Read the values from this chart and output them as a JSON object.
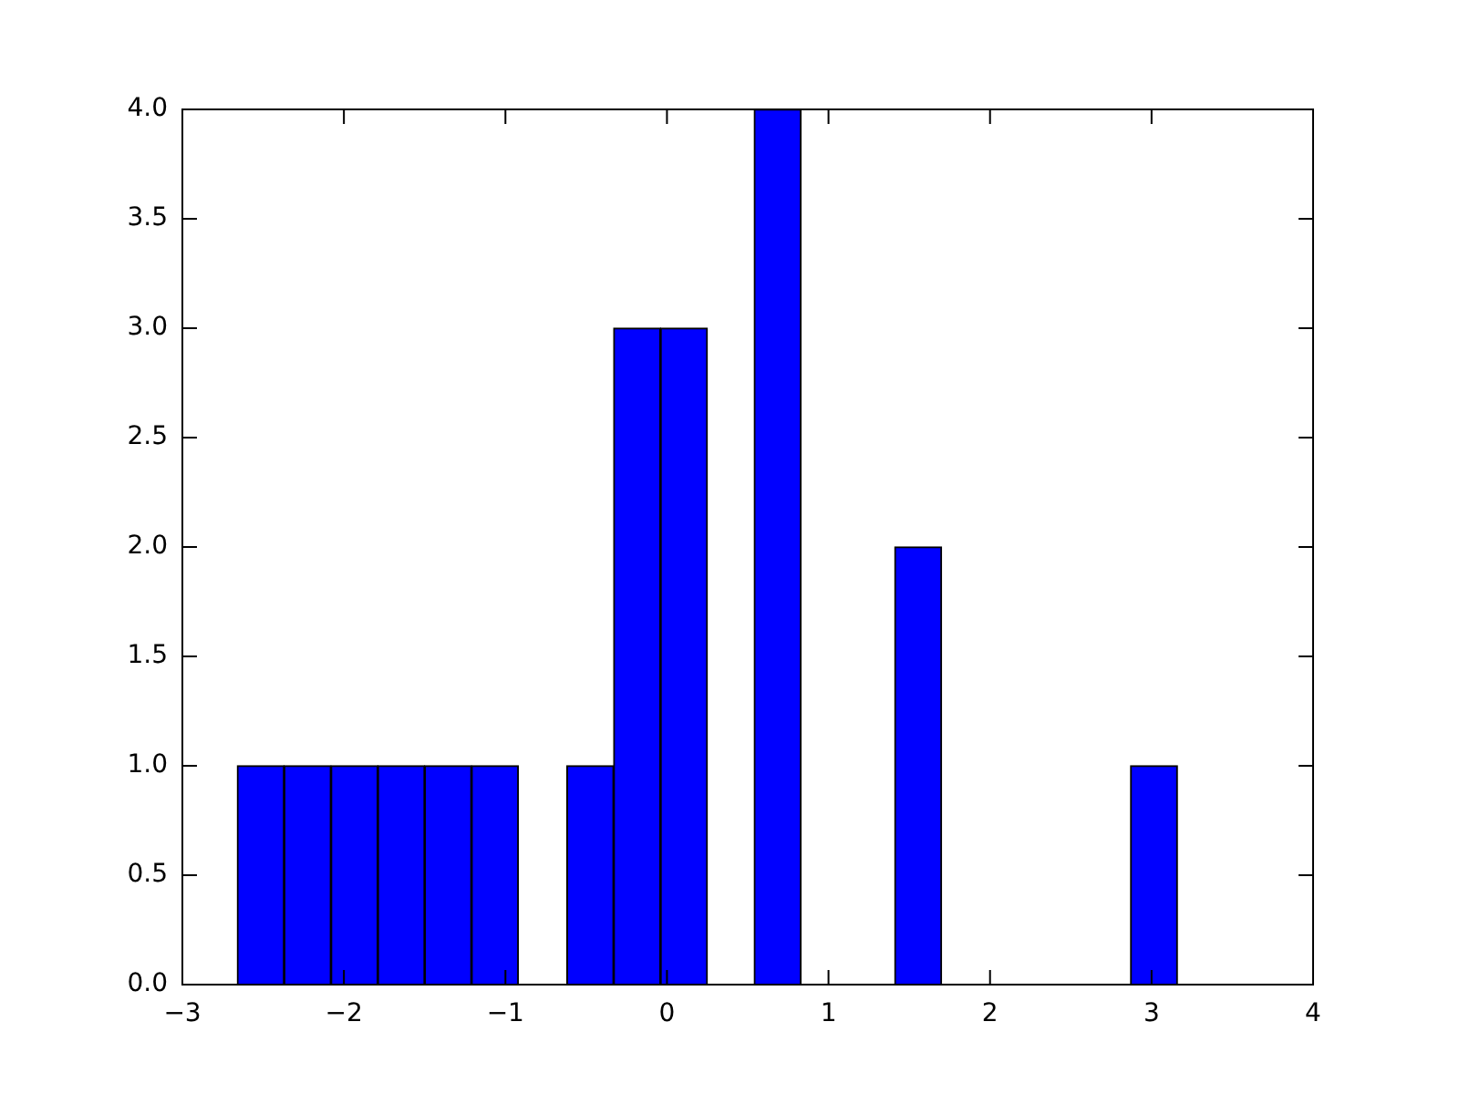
{
  "chart_data": {
    "type": "histogram",
    "bins": [
      -2.66,
      -2.37,
      -2.08,
      -1.79,
      -1.5,
      -1.21,
      -0.92,
      -0.62,
      -0.33,
      -0.04,
      0.25,
      0.54,
      0.83,
      1.12,
      1.41,
      1.7,
      1.99,
      2.29,
      2.58,
      2.87,
      3.16
    ],
    "values": [
      1,
      1,
      1,
      1,
      1,
      1,
      0,
      1,
      3,
      3,
      0,
      4,
      0,
      0,
      2,
      0,
      0,
      0,
      0,
      1
    ],
    "color": "#0000ff",
    "xlim": [
      -3,
      4
    ],
    "xticks": [
      {
        "value": -3,
        "label": "−3"
      },
      {
        "value": -2,
        "label": "−2"
      },
      {
        "value": -1,
        "label": "−1"
      },
      0,
      1,
      2,
      3,
      4
    ],
    "ylim": [
      0,
      4
    ],
    "yticks": [
      {
        "value": 0,
        "label": "0.0"
      },
      {
        "value": 0.5,
        "label": "0.5"
      },
      {
        "value": 1,
        "label": "1.0"
      },
      {
        "value": 1.5,
        "label": "1.5"
      },
      {
        "value": 2,
        "label": "2.0"
      },
      {
        "value": 2.5,
        "label": "2.5"
      },
      {
        "value": 3,
        "label": "3.0"
      },
      {
        "value": 3.5,
        "label": "3.5"
      },
      {
        "value": 4,
        "label": "4.0"
      }
    ],
    "grid": false
  }
}
